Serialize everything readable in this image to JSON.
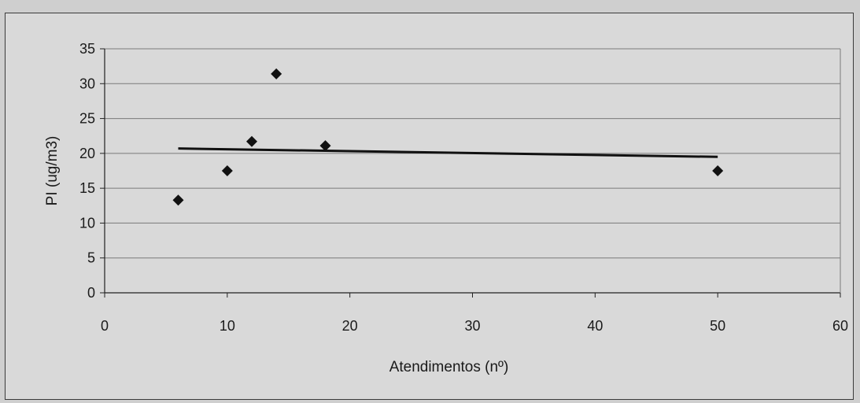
{
  "chart_data": {
    "type": "scatter",
    "title": "",
    "xlabel": "Atendimentos (nº)",
    "ylabel": "PI (ug/m3)",
    "xlim": [
      0,
      60
    ],
    "ylim": [
      0,
      35
    ],
    "xticks": [
      0,
      10,
      20,
      30,
      40,
      50,
      60
    ],
    "yticks": [
      0,
      5,
      10,
      15,
      20,
      25,
      30,
      35
    ],
    "grid": "horizontal",
    "legend": "none",
    "series": [
      {
        "marker": "diamond",
        "x": [
          6,
          10,
          12,
          14,
          18,
          50
        ],
        "y": [
          13.3,
          17.5,
          21.7,
          31.4,
          21.1,
          17.5
        ]
      }
    ],
    "trendline": {
      "type": "linear",
      "x": [
        6,
        50
      ],
      "y": [
        20.7,
        19.5
      ]
    },
    "colors": {
      "marker": "#111111",
      "trendline": "#111111",
      "grid": "#7a7a7a",
      "plot_background": "#d9d9d9"
    }
  }
}
